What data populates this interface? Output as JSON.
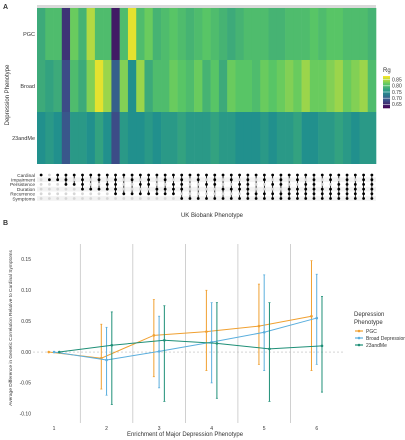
{
  "chart_data": [
    {
      "type": "heatmap",
      "panel_label": "A",
      "ylabel": "Depression Phenotype",
      "xlabel": "UK Biobank Phenotype",
      "rows": [
        "PGC",
        "Broad",
        "23andMe"
      ],
      "legend_title": "Rg",
      "legend_ticks": [
        0.85,
        0.8,
        0.75,
        0.7,
        0.65
      ],
      "colorscale": [
        "#440154",
        "#3b528b",
        "#21908d",
        "#5dc963",
        "#fde725"
      ],
      "value_range": [
        0.62,
        0.88
      ],
      "n_columns": 41,
      "values": [
        [
          0.78,
          0.8,
          0.8,
          0.66,
          0.82,
          0.79,
          0.85,
          0.8,
          0.8,
          0.64,
          0.8,
          0.87,
          0.8,
          0.82,
          0.79,
          0.8,
          0.81,
          0.8,
          0.79,
          0.8,
          0.81,
          0.8,
          0.79,
          0.78,
          0.79,
          0.8,
          0.8,
          0.8,
          0.79,
          0.79,
          0.8,
          0.8,
          0.8,
          0.81,
          0.8,
          0.81,
          0.81,
          0.8,
          0.8,
          0.8,
          0.79
        ],
        [
          0.78,
          0.77,
          0.78,
          0.68,
          0.8,
          0.78,
          0.83,
          0.87,
          0.84,
          0.7,
          0.83,
          0.75,
          0.84,
          0.78,
          0.8,
          0.8,
          0.82,
          0.81,
          0.8,
          0.82,
          0.79,
          0.81,
          0.78,
          0.82,
          0.81,
          0.81,
          0.8,
          0.82,
          0.81,
          0.82,
          0.83,
          0.82,
          0.84,
          0.82,
          0.82,
          0.83,
          0.84,
          0.82,
          0.83,
          0.84,
          0.8
        ],
        [
          0.75,
          0.76,
          0.75,
          0.69,
          0.76,
          0.76,
          0.75,
          0.77,
          0.75,
          0.68,
          0.76,
          0.75,
          0.75,
          0.76,
          0.75,
          0.76,
          0.76,
          0.77,
          0.76,
          0.76,
          0.76,
          0.77,
          0.76,
          0.76,
          0.75,
          0.75,
          0.75,
          0.76,
          0.75,
          0.76,
          0.76,
          0.77,
          0.75,
          0.75,
          0.76,
          0.76,
          0.77,
          0.76,
          0.75,
          0.76,
          0.76
        ]
      ]
    },
    {
      "type": "upset_matrix",
      "set_labels": [
        "Cardinal",
        "Impairment",
        "Persistence",
        "Duration",
        "Recurrence",
        "Symptoms"
      ],
      "columns": [
        [
          1,
          0,
          0,
          0,
          0,
          0
        ],
        [
          0,
          1,
          0,
          0,
          0,
          0
        ],
        [
          1,
          1,
          0,
          0,
          0,
          0
        ],
        [
          1,
          1,
          1,
          0,
          0,
          0
        ],
        [
          1,
          0,
          1,
          0,
          0,
          0
        ],
        [
          1,
          1,
          1,
          1,
          0,
          0
        ],
        [
          1,
          0,
          0,
          1,
          0,
          0
        ],
        [
          1,
          1,
          0,
          1,
          0,
          0
        ],
        [
          1,
          0,
          1,
          1,
          0,
          0
        ],
        [
          1,
          1,
          1,
          1,
          1,
          0
        ],
        [
          1,
          0,
          0,
          0,
          1,
          0
        ],
        [
          1,
          1,
          0,
          0,
          1,
          0
        ],
        [
          1,
          0,
          1,
          0,
          1,
          0
        ],
        [
          1,
          1,
          1,
          0,
          1,
          0
        ],
        [
          1,
          0,
          0,
          1,
          1,
          0
        ],
        [
          1,
          1,
          0,
          1,
          1,
          0
        ],
        [
          1,
          0,
          1,
          1,
          1,
          0
        ],
        [
          1,
          1,
          1,
          1,
          0,
          1
        ],
        [
          1,
          0,
          0,
          0,
          0,
          1
        ],
        [
          1,
          1,
          0,
          0,
          0,
          1
        ],
        [
          1,
          0,
          1,
          0,
          0,
          1
        ],
        [
          1,
          1,
          1,
          0,
          0,
          1
        ],
        [
          1,
          0,
          0,
          1,
          0,
          1
        ],
        [
          1,
          1,
          0,
          1,
          0,
          1
        ],
        [
          1,
          0,
          1,
          1,
          0,
          1
        ],
        [
          1,
          1,
          1,
          1,
          1,
          1
        ],
        [
          1,
          0,
          0,
          0,
          1,
          1
        ],
        [
          1,
          1,
          0,
          0,
          1,
          1
        ],
        [
          1,
          0,
          1,
          0,
          1,
          1
        ],
        [
          1,
          1,
          1,
          0,
          1,
          1
        ],
        [
          1,
          0,
          0,
          1,
          1,
          1
        ],
        [
          1,
          1,
          0,
          1,
          1,
          1
        ],
        [
          1,
          0,
          1,
          1,
          1,
          1
        ],
        [
          1,
          1,
          1,
          1,
          1,
          1
        ],
        [
          1,
          0,
          0,
          1,
          1,
          1
        ],
        [
          1,
          1,
          0,
          1,
          1,
          1
        ],
        [
          1,
          0,
          1,
          1,
          1,
          1
        ],
        [
          1,
          1,
          1,
          1,
          1,
          1
        ],
        [
          1,
          0,
          1,
          1,
          1,
          1
        ],
        [
          1,
          1,
          1,
          1,
          1,
          1
        ],
        [
          1,
          1,
          1,
          1,
          1,
          1
        ]
      ]
    },
    {
      "type": "line",
      "panel_label": "B",
      "xlabel": "Enrichment of Major Depression Phenotype",
      "ylabel": "Average Difference in Genetic Correlation Relative to Cardinal Symptoms",
      "x": [
        1,
        2,
        3,
        4,
        5,
        6
      ],
      "xlim": [
        0.6,
        6.5
      ],
      "ylim": [
        -0.115,
        0.175
      ],
      "yticks": [
        -0.1,
        -0.05,
        0.0,
        0.05,
        0.1,
        0.15
      ],
      "ytick_labels": [
        "-0.10",
        "-0.05",
        "0.00",
        "0.05",
        "0.10",
        "0.15"
      ],
      "xticks": [
        1,
        2,
        3,
        4,
        5,
        6
      ],
      "dodge": [
        -0.1,
        0,
        0.1
      ],
      "legend_title": "Depression\nPhenotype",
      "legend_position": "right",
      "reference_line_y": 0,
      "vertical_lines_x": [
        1.5,
        2.5,
        3.5,
        4.5,
        5.5
      ],
      "series": [
        {
          "name": "PGC",
          "color": "#f0a030",
          "values": [
            0.0,
            -0.01,
            0.027,
            0.033,
            0.042,
            0.058
          ],
          "lower": [
            0.0,
            -0.06,
            -0.04,
            -0.03,
            -0.02,
            -0.03
          ],
          "upper": [
            0.0,
            0.045,
            0.085,
            0.1,
            0.11,
            0.148
          ]
        },
        {
          "name": "Broad Depression",
          "color": "#5aaedd",
          "values": [
            0.0,
            -0.013,
            0.001,
            0.016,
            0.032,
            0.055
          ],
          "lower": [
            0.0,
            -0.07,
            -0.058,
            -0.05,
            -0.03,
            -0.02
          ],
          "upper": [
            0.0,
            0.04,
            0.058,
            0.08,
            0.125,
            0.126
          ]
        },
        {
          "name": "23andMe",
          "color": "#1e8f77",
          "values": [
            0.0,
            0.011,
            0.019,
            0.014,
            0.005,
            0.01
          ],
          "lower": [
            0.0,
            -0.085,
            -0.08,
            -0.075,
            -0.08,
            -0.065
          ],
          "upper": [
            0.0,
            0.065,
            0.075,
            0.08,
            0.08,
            0.09
          ]
        }
      ]
    }
  ]
}
